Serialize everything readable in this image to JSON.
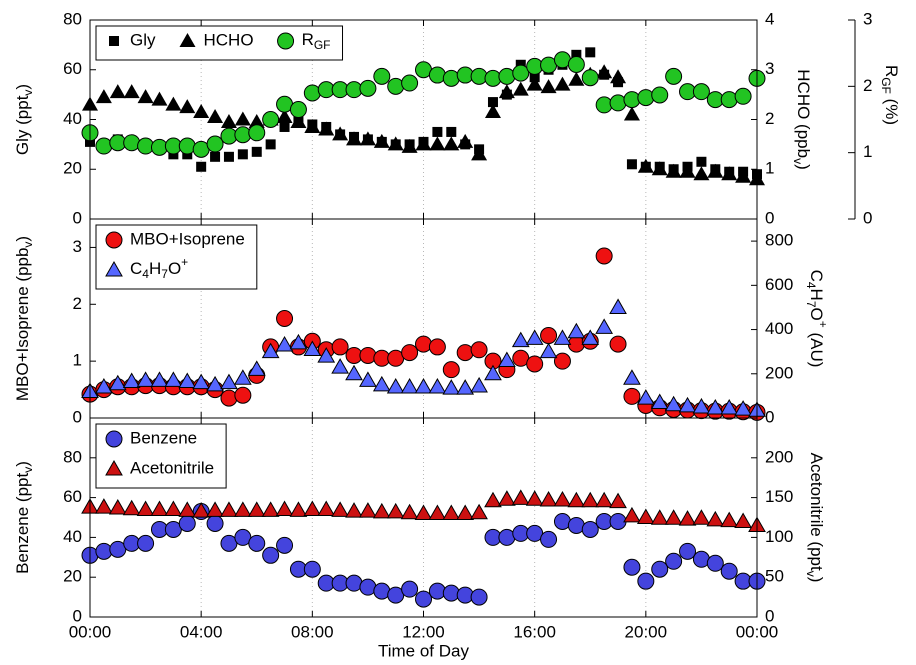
{
  "chart_data": [
    {
      "type": "scatter",
      "ylabel": [
        "Gly (ppt",
        {
          "sub": "v"
        },
        ")"
      ],
      "y2label": [
        "HCHO (ppb",
        {
          "sub": "v"
        },
        ")"
      ],
      "y3label": [
        "R",
        {
          "sub": "GF"
        },
        " (%)"
      ],
      "xlim": [
        0,
        24
      ],
      "ylim": [
        0,
        80
      ],
      "yticks": [
        0,
        20,
        40,
        60,
        80
      ],
      "y2lim": [
        0,
        4
      ],
      "y2ticks": [
        0,
        1,
        2,
        3,
        4
      ],
      "y3lim": [
        0,
        3
      ],
      "y3ticks": [
        0,
        1,
        2,
        3
      ],
      "xgrid": true,
      "legend": "upper left",
      "legend_columns": 3,
      "x": [
        0,
        0.5,
        1,
        1.5,
        2,
        2.5,
        3,
        3.5,
        4,
        4.5,
        5,
        5.5,
        6,
        6.5,
        7,
        7.5,
        8,
        8.5,
        9,
        9.5,
        10,
        10.5,
        11,
        11.5,
        12,
        12.5,
        13,
        13.5,
        14,
        14.5,
        15,
        15.5,
        16,
        16.5,
        17,
        17.5,
        18,
        18.5,
        19,
        19.5,
        20,
        20.5,
        21,
        21.5,
        22,
        22.5,
        23,
        23.5,
        24
      ],
      "series": [
        {
          "name": "Gly",
          "color": "#000000",
          "marker": "square",
          "axis": "y",
          "values": [
            31,
            30,
            32,
            30,
            29,
            28,
            26,
            26,
            21,
            25,
            25,
            26,
            27,
            30,
            37,
            40,
            38,
            37,
            34,
            33,
            32,
            31,
            30,
            30,
            31,
            35,
            35,
            30,
            28,
            47,
            50,
            62,
            57,
            60,
            62,
            66,
            67,
            58,
            55,
            22,
            21,
            21,
            20,
            21,
            23,
            20,
            19,
            19,
            18
          ]
        },
        {
          "name": "HCHO",
          "color": "#000000",
          "marker": "triangle",
          "axis": "y2",
          "values": [
            2.3,
            2.45,
            2.55,
            2.55,
            2.45,
            2.4,
            2.3,
            2.25,
            2.15,
            2.05,
            1.95,
            2.0,
            1.95,
            2.0,
            2.05,
            1.95,
            1.85,
            1.8,
            1.7,
            1.6,
            1.6,
            1.55,
            1.5,
            1.45,
            1.5,
            1.5,
            1.5,
            1.55,
            1.3,
            2.15,
            2.55,
            2.6,
            2.7,
            2.65,
            2.7,
            2.8,
            2.9,
            2.95,
            2.85,
            2.1,
            1.05,
            1.0,
            0.95,
            0.95,
            0.9,
            0.95,
            0.9,
            0.85,
            0.8
          ]
        },
        {
          "name": [
            "R",
            {
              "sub": "GF"
            }
          ],
          "color": "#22c422",
          "marker": "circle",
          "axis": "y3",
          "values": [
            1.3,
            1.1,
            1.15,
            1.15,
            1.1,
            1.08,
            1.1,
            1.1,
            1.05,
            1.13,
            1.25,
            1.27,
            1.3,
            1.5,
            1.73,
            1.65,
            1.9,
            1.95,
            1.95,
            1.95,
            1.97,
            2.15,
            2.0,
            2.05,
            2.25,
            2.17,
            2.12,
            2.17,
            2.15,
            2.12,
            2.15,
            2.2,
            2.3,
            2.32,
            2.4,
            2.33,
            2.13,
            1.72,
            1.75,
            1.8,
            1.83,
            1.87,
            2.15,
            1.92,
            1.92,
            1.8,
            1.8,
            1.85,
            2.12
          ]
        }
      ]
    },
    {
      "type": "scatter",
      "ylabel": [
        "MBO+Isoprene (ppb",
        {
          "sub": "v"
        },
        ")"
      ],
      "y2label": [
        "C",
        {
          "sub": "4"
        },
        "H",
        {
          "sub": "7"
        },
        "O",
        {
          "sup": "+"
        },
        " (AU)"
      ],
      "xlim": [
        0,
        24
      ],
      "ylim": [
        0,
        3.5
      ],
      "yticks": [
        0,
        1,
        2,
        3
      ],
      "y2lim": [
        0,
        900
      ],
      "y2ticks": [
        0,
        200,
        400,
        600,
        800
      ],
      "xgrid": true,
      "legend": "upper left",
      "legend_columns": 1,
      "x": [
        0,
        0.5,
        1,
        1.5,
        2,
        2.5,
        3,
        3.5,
        4,
        4.5,
        5,
        5.5,
        6,
        6.5,
        7,
        7.5,
        8,
        8.5,
        9,
        9.5,
        10,
        10.5,
        11,
        11.5,
        12,
        12.5,
        13,
        13.5,
        14,
        14.5,
        15,
        15.5,
        16,
        16.5,
        17,
        17.5,
        18,
        18.5,
        19,
        19.5,
        20,
        20.5,
        21,
        21.5,
        22,
        22.5,
        23,
        23.5,
        24
      ],
      "series": [
        {
          "name": "MBO+Isoprene",
          "color": "#ee1111",
          "marker": "circle",
          "axis": "y",
          "values": [
            0.42,
            0.5,
            0.55,
            0.55,
            0.57,
            0.57,
            0.55,
            0.55,
            0.55,
            0.5,
            0.35,
            0.4,
            0.75,
            1.25,
            1.75,
            1.25,
            1.35,
            1.2,
            1.25,
            1.1,
            1.1,
            1.05,
            1.05,
            1.15,
            1.3,
            1.25,
            0.85,
            1.15,
            1.2,
            1.0,
            0.85,
            1.05,
            0.95,
            1.45,
            1.0,
            1.3,
            1.35,
            2.85,
            1.3,
            0.38,
            0.22,
            0.18,
            0.15,
            0.14,
            0.13,
            0.12,
            0.12,
            0.11,
            0.1
          ]
        },
        {
          "name": [
            "C",
            {
              "sub": "4"
            },
            "H",
            {
              "sub": "7"
            },
            "O",
            {
              "sup": "+"
            }
          ],
          "color": "#5566ff",
          "marker": "triangle",
          "axis": "y2",
          "values": [
            120,
            140,
            155,
            165,
            170,
            170,
            170,
            165,
            160,
            150,
            160,
            180,
            220,
            300,
            330,
            340,
            310,
            280,
            230,
            200,
            170,
            150,
            140,
            140,
            140,
            140,
            135,
            135,
            145,
            200,
            260,
            350,
            360,
            300,
            360,
            390,
            360,
            410,
            500,
            180,
            90,
            70,
            60,
            55,
            50,
            45,
            45,
            40,
            35
          ]
        }
      ]
    },
    {
      "type": "scatter",
      "ylabel": [
        "Benzene (ppt",
        {
          "sub": "v"
        },
        ")"
      ],
      "y2label": [
        "Acetonitrile (ppt",
        {
          "sub": "v"
        },
        ")"
      ],
      "xlabel": "Time of Day",
      "xlim": [
        0,
        24
      ],
      "xticks": [
        {
          "value": 0,
          "label": "00:00"
        },
        {
          "value": 4,
          "label": "04:00"
        },
        {
          "value": 8,
          "label": "08:00"
        },
        {
          "value": 12,
          "label": "12:00"
        },
        {
          "value": 16,
          "label": "16:00"
        },
        {
          "value": 20,
          "label": "20:00"
        },
        {
          "value": 24,
          "label": "00:00"
        }
      ],
      "ylim": [
        0,
        100
      ],
      "yticks": [
        0,
        20,
        40,
        60,
        80
      ],
      "y2lim": [
        0,
        250
      ],
      "y2ticks": [
        0,
        50,
        100,
        150,
        200
      ],
      "xgrid": true,
      "legend": "upper left",
      "legend_columns": 1,
      "x": [
        0,
        0.5,
        1,
        1.5,
        2,
        2.5,
        3,
        3.5,
        4,
        4.5,
        5,
        5.5,
        6,
        6.5,
        7,
        7.5,
        8,
        8.5,
        9,
        9.5,
        10,
        10.5,
        11,
        11.5,
        12,
        12.5,
        13,
        13.5,
        14,
        14.5,
        15,
        15.5,
        16,
        16.5,
        17,
        17.5,
        18,
        18.5,
        19,
        19.5,
        20,
        20.5,
        21,
        21.5,
        22,
        22.5,
        23,
        23.5,
        24
      ],
      "series": [
        {
          "name": "Benzene",
          "color": "#4444dd",
          "marker": "circle",
          "axis": "y",
          "values": [
            31,
            33,
            34,
            37,
            37,
            44,
            44,
            47,
            53,
            47,
            37,
            40,
            37,
            31,
            36,
            24,
            24,
            17,
            17,
            17,
            15,
            13,
            11,
            14,
            9,
            13,
            12,
            11,
            10,
            40,
            40,
            42,
            42,
            39,
            48,
            46,
            44,
            48,
            48,
            25,
            18,
            24,
            28,
            33,
            29,
            27,
            23,
            18,
            18
          ]
        },
        {
          "name": "Acetonitrile",
          "color": "#cc1111",
          "marker": "triangle",
          "axis": "y2",
          "values": [
            138,
            138,
            137,
            136,
            135,
            135,
            135,
            134,
            133,
            134,
            134,
            134,
            134,
            134,
            135,
            134,
            135,
            135,
            134,
            133,
            133,
            132,
            132,
            131,
            130,
            130,
            130,
            130,
            131,
            146,
            148,
            149,
            148,
            147,
            147,
            146,
            146,
            146,
            145,
            127,
            125,
            124,
            124,
            123,
            124,
            122,
            121,
            120,
            115
          ]
        }
      ]
    }
  ]
}
